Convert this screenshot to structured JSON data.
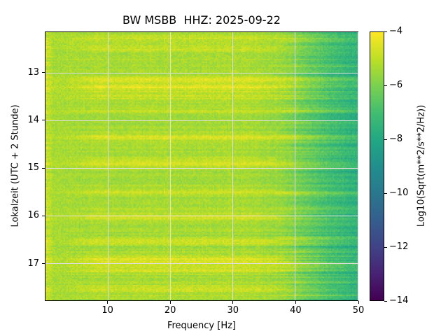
{
  "chart_data": {
    "type": "heatmap",
    "title": "BW MSBB  HHZ: 2025-09-22",
    "station": "BW MSBB",
    "channel": "HHZ",
    "date": "2025-09-22",
    "xlabel": "Frequency [Hz]",
    "ylabel": "Lokalzeit (UTC + 2 Stunde)",
    "x_range_hz": [
      0,
      50
    ],
    "x_ticks": [
      10,
      20,
      30,
      40,
      50
    ],
    "y_range_hours": [
      12.14,
      17.78
    ],
    "y_ticks": [
      13,
      14,
      15,
      16,
      17
    ],
    "grid": true,
    "grid_color": "#dedede",
    "colorbar": {
      "label": "Log10(Sqrt(m**2/s**2/Hz))",
      "ticks": [
        -4,
        -6,
        -8,
        -10,
        -12,
        -14
      ],
      "vmin": -14,
      "vmax": -4,
      "colormap": "viridis"
    },
    "colormap_stops": [
      [
        0.0,
        68,
        1,
        84
      ],
      [
        0.1,
        72,
        36,
        117
      ],
      [
        0.2,
        65,
        68,
        135
      ],
      [
        0.3,
        53,
        95,
        141
      ],
      [
        0.4,
        42,
        120,
        142
      ],
      [
        0.5,
        33,
        144,
        141
      ],
      [
        0.6,
        34,
        168,
        132
      ],
      [
        0.7,
        66,
        190,
        113
      ],
      [
        0.8,
        122,
        209,
        81
      ],
      [
        0.9,
        189,
        223,
        38
      ],
      [
        1.0,
        253,
        231,
        37
      ]
    ],
    "spectrum_model": {
      "description": "Broadband level ~ -5.3 log units from 0-38 Hz (yellow-green), falling to ~ -7.5 at 50 Hz (teal). Horizontal bright bursts (~ -4.6, yellow) at listed local times spanning ~8-38 Hz; banded teal/green structure above 40 Hz; sporadic bright patches at the lowest frequencies.",
      "base_level_by_freq": [
        [
          0,
          -5.1
        ],
        [
          1.5,
          -5.35
        ],
        [
          32,
          -5.3
        ],
        [
          38,
          -5.55
        ],
        [
          42,
          -6.3
        ],
        [
          46,
          -7.0
        ],
        [
          50,
          -7.55
        ]
      ],
      "pixel_noise": 0.3,
      "row_noise": 0.22,
      "column_noise": 0.07,
      "low_freq_edge": {
        "max_hz": 1.3,
        "boost": 0.5
      },
      "bursts": [
        {
          "time": 12.25,
          "strength": 0.4,
          "width": 0.04
        },
        {
          "time": 12.5,
          "strength": 0.5,
          "width": 0.05
        },
        {
          "time": 13.13,
          "strength": 0.65,
          "width": 0.05
        },
        {
          "time": 13.32,
          "strength": 0.75,
          "width": 0.07
        },
        {
          "time": 13.5,
          "strength": 0.6,
          "width": 0.04
        },
        {
          "time": 13.8,
          "strength": 0.35,
          "width": 0.03
        },
        {
          "time": 14.35,
          "strength": 0.55,
          "width": 0.05
        },
        {
          "time": 14.9,
          "strength": 0.7,
          "width": 0.07
        },
        {
          "time": 15.5,
          "strength": 0.45,
          "width": 0.035
        },
        {
          "time": 16.0,
          "strength": 0.65,
          "width": 0.07
        },
        {
          "time": 16.55,
          "strength": 0.5,
          "width": 0.04
        },
        {
          "time": 16.95,
          "strength": 0.75,
          "width": 0.08
        },
        {
          "time": 17.15,
          "strength": 0.55,
          "width": 0.04
        },
        {
          "time": 17.55,
          "strength": 0.6,
          "width": 0.05
        }
      ],
      "high_freq_bands": {
        "min_hz": 40,
        "period_hours": 0.3,
        "amplitude": 0.42
      }
    }
  }
}
